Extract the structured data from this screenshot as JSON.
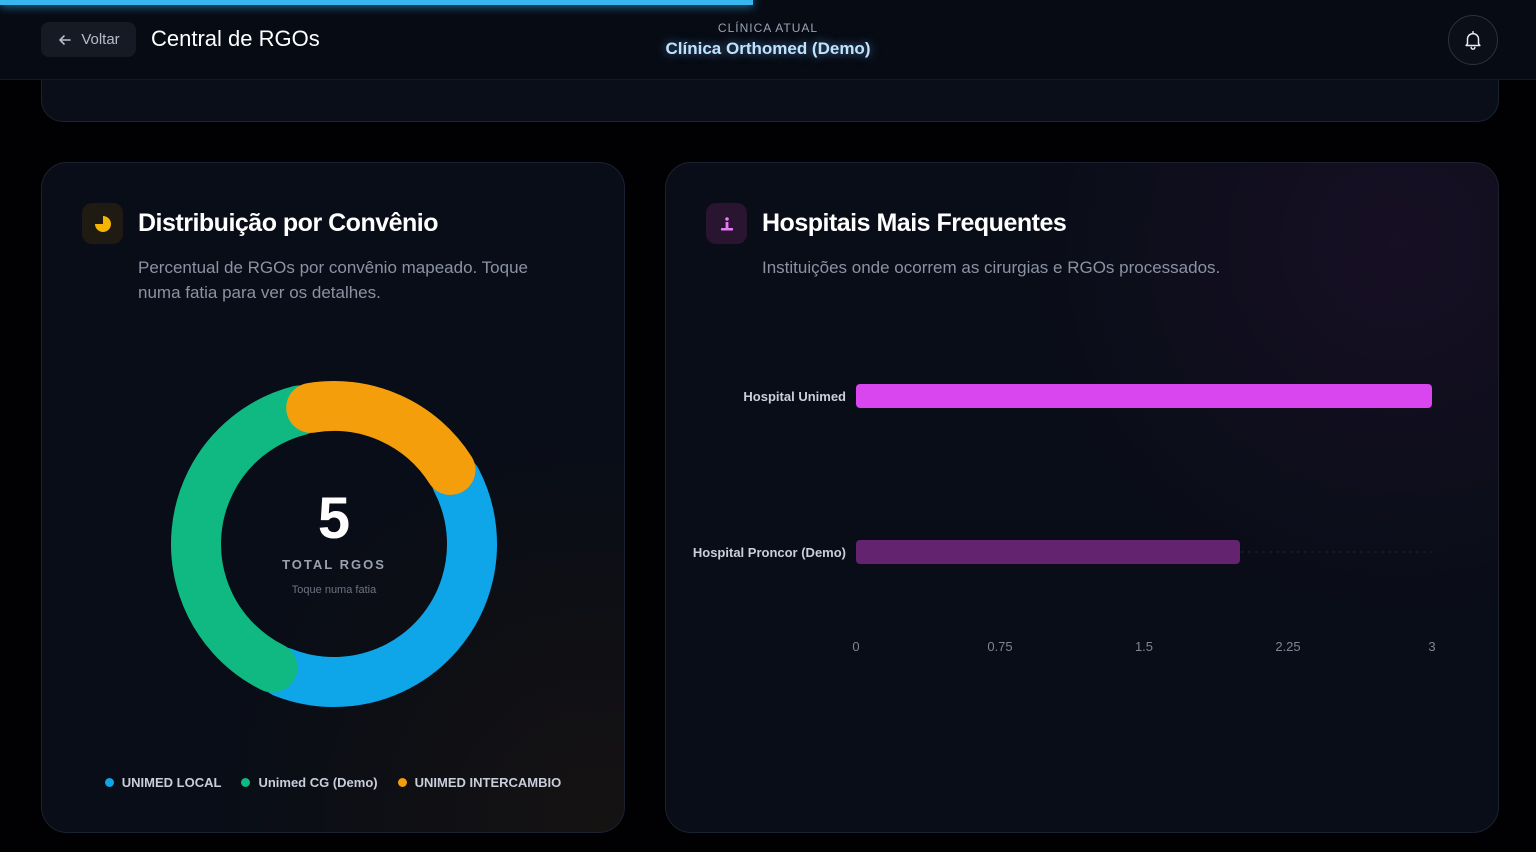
{
  "header": {
    "back_label": "Voltar",
    "title": "Central de RGOs",
    "clinic_label": "CLÍNICA ATUAL",
    "clinic_name": "Clínica Orthomed (Demo)",
    "progress": 0.49
  },
  "distribution_card": {
    "icon": "pie-chart-icon",
    "title": "Distribuição por Convênio",
    "description": "Percentual de RGOs por convênio mapeado. Toque numa fatia para ver os detalhes.",
    "total_value": "5",
    "total_label": "TOTAL RGOS",
    "hint": "Toque numa fatia"
  },
  "hospitals_card": {
    "icon": "hospital-icon",
    "title": "Hospitais Mais Frequentes",
    "description": "Instituições onde ocorrem as cirurgias e RGOs processados."
  },
  "colors": {
    "accent": "#38b6f0",
    "unimed_local": "#0ea5e9",
    "unimed_cg": "#10b981",
    "unimed_intercambio": "#f59e0b",
    "hospital_unimed": "#d946ef",
    "hospital_proncor": "#64236f"
  },
  "chart_data": [
    {
      "type": "pie",
      "categories": [
        "UNIMED LOCAL",
        "Unimed CG (Demo)",
        "UNIMED INTERCAMBIO"
      ],
      "values": [
        2,
        2,
        1
      ],
      "legend": "bottom"
    },
    {
      "type": "bar",
      "orientation": "horizontal",
      "categories": [
        "Hospital Unimed",
        "Hospital Proncor (Demo)"
      ],
      "values": [
        3,
        2
      ],
      "xlim": [
        0,
        3
      ],
      "xticks": [
        "0",
        "0.75",
        "1.5",
        "2.25",
        "3"
      ]
    }
  ]
}
